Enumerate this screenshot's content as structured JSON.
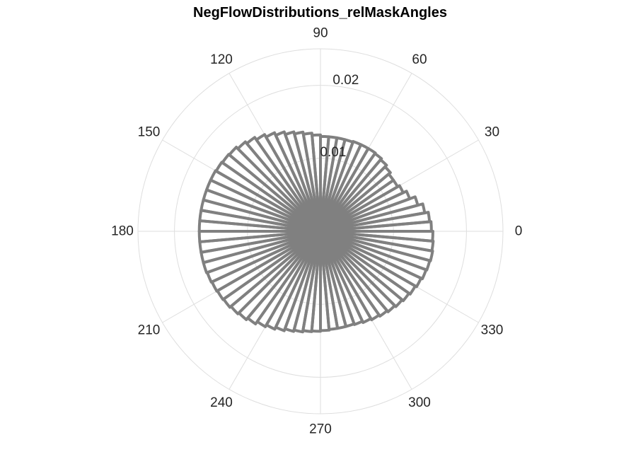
{
  "chart_data": {
    "type": "polar-histogram",
    "title": "NegFlowDistributions_relMaskAngles",
    "theta_unit": "degrees",
    "theta_ticks": [
      0,
      30,
      60,
      90,
      120,
      150,
      180,
      210,
      240,
      270,
      300,
      330
    ],
    "theta_tick_labels": [
      "0",
      "30",
      "60",
      "90",
      "120",
      "150",
      "180",
      "210",
      "240",
      "270",
      "300",
      "330"
    ],
    "r_lim": [
      0,
      0.025
    ],
    "r_ticks": [
      0.01,
      0.02
    ],
    "r_tick_labels": [
      "0.01",
      "0.02"
    ],
    "grid": true,
    "bar_color": "#808080",
    "bar_style": "outline",
    "bin_width_deg": 5,
    "bin_centers_deg": [
      2.5,
      7.5,
      12.5,
      17.5,
      22.5,
      27.5,
      32.5,
      37.5,
      42.5,
      47.5,
      52.5,
      57.5,
      62.5,
      67.5,
      72.5,
      77.5,
      82.5,
      87.5,
      92.5,
      97.5,
      102.5,
      107.5,
      112.5,
      117.5,
      122.5,
      127.5,
      132.5,
      137.5,
      142.5,
      147.5,
      152.5,
      157.5,
      162.5,
      167.5,
      172.5,
      177.5,
      182.5,
      187.5,
      192.5,
      197.5,
      202.5,
      207.5,
      212.5,
      217.5,
      222.5,
      227.5,
      232.5,
      237.5,
      242.5,
      247.5,
      252.5,
      257.5,
      262.5,
      267.5,
      272.5,
      277.5,
      282.5,
      287.5,
      292.5,
      297.5,
      302.5,
      307.5,
      312.5,
      317.5,
      322.5,
      327.5,
      332.5,
      337.5,
      342.5,
      347.5,
      352.5,
      357.5
    ],
    "values": [
      0.0152,
      0.015,
      0.0145,
      0.0138,
      0.013,
      0.0125,
      0.0122,
      0.0122,
      0.0125,
      0.0128,
      0.013,
      0.0131,
      0.0131,
      0.0131,
      0.013,
      0.013,
      0.013,
      0.013,
      0.0132,
      0.0135,
      0.0138,
      0.0141,
      0.0145,
      0.0149,
      0.0153,
      0.0157,
      0.016,
      0.0163,
      0.0164,
      0.0165,
      0.0166,
      0.0166,
      0.0166,
      0.0166,
      0.0166,
      0.0166,
      0.0166,
      0.0166,
      0.0166,
      0.0166,
      0.0165,
      0.0164,
      0.0163,
      0.0162,
      0.016,
      0.0158,
      0.0155,
      0.0151,
      0.0148,
      0.0145,
      0.0142,
      0.014,
      0.0138,
      0.0137,
      0.0136,
      0.0135,
      0.0135,
      0.0135,
      0.0136,
      0.0138,
      0.014,
      0.0142,
      0.0144,
      0.0146,
      0.0148,
      0.015,
      0.0152,
      0.0154,
      0.0155,
      0.0156,
      0.0155,
      0.0154
    ]
  }
}
